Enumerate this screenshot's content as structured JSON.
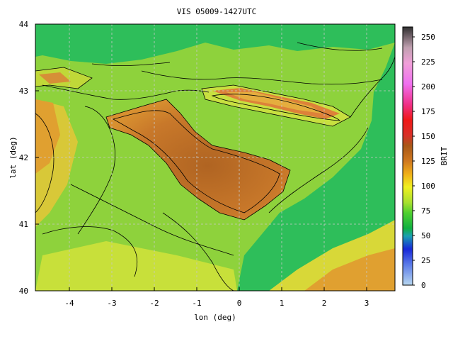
{
  "title": "VIS 05009-1427UTC",
  "x_axis": {
    "label": "lon (deg)",
    "range": [
      -4.8,
      3.7
    ],
    "ticks": [
      -4,
      -3,
      -2,
      -1,
      0,
      1,
      2,
      3
    ],
    "tick_labels": [
      "-4",
      "-3",
      "-2",
      "-1",
      "0",
      "1",
      "2",
      "3"
    ]
  },
  "y_axis": {
    "label": "lat (deg)",
    "range": [
      40,
      44
    ],
    "ticks": [
      40,
      41,
      42,
      43,
      44
    ],
    "tick_labels": [
      "40",
      "41",
      "42",
      "43",
      "44"
    ]
  },
  "colorbar": {
    "label": "BRIT",
    "range": [
      0,
      260
    ],
    "ticks": [
      0,
      25,
      50,
      75,
      100,
      125,
      150,
      175,
      200,
      225,
      250
    ],
    "tick_labels": [
      "0",
      "25",
      "50",
      "75",
      "100",
      "125",
      "150",
      "175",
      "200",
      "225",
      "250"
    ]
  },
  "colors": {
    "sea": "#2ebe5a",
    "land_base": "#8ed23c",
    "lowland": "#c9e23a",
    "valley": "#c0762a",
    "valley_center": "#b06220",
    "mountains_high": "#e0403a",
    "grid": "#c8c8c8"
  }
}
